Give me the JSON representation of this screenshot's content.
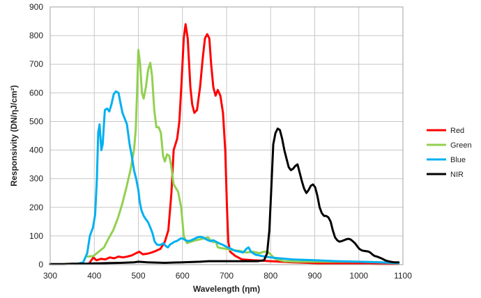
{
  "chart_data": {
    "type": "line",
    "xlabel": "Wavelength (ηm)",
    "ylabel": "Responsivity (DN/ηJ/cm²)",
    "xlim": [
      300,
      1100
    ],
    "ylim": [
      0,
      900
    ],
    "xticks": [
      300,
      400,
      500,
      600,
      700,
      800,
      900,
      1000,
      1100
    ],
    "yticks": [
      0,
      100,
      200,
      300,
      400,
      500,
      600,
      700,
      800,
      900
    ],
    "grid": true,
    "legend_position": "right",
    "series": [
      {
        "name": "Red",
        "color": "#ff0000",
        "points": [
          [
            390,
            8
          ],
          [
            398,
            25
          ],
          [
            405,
            15
          ],
          [
            415,
            20
          ],
          [
            425,
            18
          ],
          [
            435,
            25
          ],
          [
            445,
            22
          ],
          [
            455,
            28
          ],
          [
            465,
            25
          ],
          [
            475,
            28
          ],
          [
            485,
            32
          ],
          [
            495,
            40
          ],
          [
            502,
            45
          ],
          [
            510,
            36
          ],
          [
            520,
            38
          ],
          [
            530,
            42
          ],
          [
            540,
            48
          ],
          [
            550,
            55
          ],
          [
            560,
            80
          ],
          [
            568,
            120
          ],
          [
            575,
            250
          ],
          [
            580,
            400
          ],
          [
            588,
            440
          ],
          [
            593,
            500
          ],
          [
            598,
            640
          ],
          [
            603,
            790
          ],
          [
            607,
            840
          ],
          [
            612,
            790
          ],
          [
            618,
            620
          ],
          [
            622,
            560
          ],
          [
            627,
            530
          ],
          [
            633,
            540
          ],
          [
            640,
            620
          ],
          [
            646,
            720
          ],
          [
            651,
            790
          ],
          [
            656,
            805
          ],
          [
            661,
            790
          ],
          [
            665,
            700
          ],
          [
            670,
            620
          ],
          [
            675,
            590
          ],
          [
            680,
            610
          ],
          [
            686,
            590
          ],
          [
            692,
            530
          ],
          [
            697,
            400
          ],
          [
            701,
            200
          ],
          [
            704,
            80
          ],
          [
            708,
            45
          ],
          [
            720,
            30
          ],
          [
            735,
            18
          ],
          [
            760,
            15
          ],
          [
            800,
            12
          ],
          [
            850,
            8
          ],
          [
            900,
            5
          ],
          [
            950,
            4
          ],
          [
            1000,
            3
          ],
          [
            1050,
            2
          ],
          [
            1090,
            2
          ]
        ]
      },
      {
        "name": "Green",
        "color": "#92d050",
        "points": [
          [
            385,
            28
          ],
          [
            398,
            30
          ],
          [
            410,
            45
          ],
          [
            422,
            60
          ],
          [
            432,
            90
          ],
          [
            443,
            120
          ],
          [
            453,
            160
          ],
          [
            463,
            210
          ],
          [
            473,
            270
          ],
          [
            482,
            330
          ],
          [
            490,
            400
          ],
          [
            494,
            470
          ],
          [
            497,
            600
          ],
          [
            500,
            750
          ],
          [
            504,
            700
          ],
          [
            508,
            600
          ],
          [
            512,
            580
          ],
          [
            517,
            620
          ],
          [
            522,
            680
          ],
          [
            527,
            705
          ],
          [
            531,
            660
          ],
          [
            536,
            540
          ],
          [
            541,
            480
          ],
          [
            546,
            480
          ],
          [
            551,
            460
          ],
          [
            556,
            380
          ],
          [
            560,
            360
          ],
          [
            565,
            385
          ],
          [
            570,
            380
          ],
          [
            574,
            350
          ],
          [
            580,
            280
          ],
          [
            590,
            255
          ],
          [
            597,
            200
          ],
          [
            603,
            100
          ],
          [
            610,
            75
          ],
          [
            620,
            80
          ],
          [
            630,
            85
          ],
          [
            640,
            88
          ],
          [
            650,
            92
          ],
          [
            658,
            95
          ],
          [
            664,
            85
          ],
          [
            670,
            78
          ],
          [
            676,
            80
          ],
          [
            680,
            60
          ],
          [
            690,
            57
          ],
          [
            700,
            55
          ],
          [
            715,
            50
          ],
          [
            730,
            48
          ],
          [
            745,
            42
          ],
          [
            760,
            45
          ],
          [
            775,
            40
          ],
          [
            785,
            45
          ],
          [
            793,
            45
          ],
          [
            800,
            35
          ],
          [
            810,
            20
          ],
          [
            830,
            12
          ],
          [
            860,
            10
          ],
          [
            900,
            10
          ],
          [
            950,
            10
          ],
          [
            1000,
            10
          ],
          [
            1050,
            8
          ],
          [
            1090,
            5
          ]
        ]
      },
      {
        "name": "Blue",
        "color": "#00b0f0",
        "points": [
          [
            360,
            2
          ],
          [
            375,
            8
          ],
          [
            384,
            40
          ],
          [
            390,
            100
          ],
          [
            397,
            130
          ],
          [
            402,
            175
          ],
          [
            406,
            300
          ],
          [
            409,
            460
          ],
          [
            412,
            490
          ],
          [
            416,
            400
          ],
          [
            419,
            420
          ],
          [
            424,
            540
          ],
          [
            429,
            545
          ],
          [
            434,
            535
          ],
          [
            439,
            560
          ],
          [
            444,
            595
          ],
          [
            449,
            605
          ],
          [
            455,
            600
          ],
          [
            460,
            560
          ],
          [
            464,
            530
          ],
          [
            469,
            510
          ],
          [
            474,
            490
          ],
          [
            480,
            420
          ],
          [
            485,
            380
          ],
          [
            490,
            330
          ],
          [
            495,
            300
          ],
          [
            500,
            260
          ],
          [
            503,
            220
          ],
          [
            507,
            190
          ],
          [
            512,
            170
          ],
          [
            517,
            158
          ],
          [
            522,
            148
          ],
          [
            527,
            130
          ],
          [
            532,
            110
          ],
          [
            537,
            80
          ],
          [
            542,
            70
          ],
          [
            547,
            68
          ],
          [
            552,
            70
          ],
          [
            557,
            75
          ],
          [
            562,
            65
          ],
          [
            567,
            60
          ],
          [
            572,
            70
          ],
          [
            577,
            75
          ],
          [
            582,
            80
          ],
          [
            587,
            82
          ],
          [
            592,
            87
          ],
          [
            597,
            92
          ],
          [
            602,
            90
          ],
          [
            607,
            85
          ],
          [
            613,
            82
          ],
          [
            620,
            85
          ],
          [
            627,
            90
          ],
          [
            634,
            95
          ],
          [
            640,
            97
          ],
          [
            646,
            95
          ],
          [
            652,
            90
          ],
          [
            658,
            85
          ],
          [
            664,
            82
          ],
          [
            670,
            85
          ],
          [
            676,
            80
          ],
          [
            682,
            75
          ],
          [
            690,
            70
          ],
          [
            700,
            62
          ],
          [
            710,
            55
          ],
          [
            720,
            48
          ],
          [
            730,
            45
          ],
          [
            738,
            42
          ],
          [
            745,
            55
          ],
          [
            750,
            60
          ],
          [
            755,
            45
          ],
          [
            765,
            35
          ],
          [
            780,
            30
          ],
          [
            800,
            25
          ],
          [
            820,
            22
          ],
          [
            850,
            18
          ],
          [
            900,
            15
          ],
          [
            950,
            12
          ],
          [
            1000,
            10
          ],
          [
            1050,
            8
          ],
          [
            1090,
            5
          ]
        ]
      },
      {
        "name": "NIR",
        "color": "#000000",
        "points": [
          [
            300,
            2
          ],
          [
            330,
            2
          ],
          [
            350,
            3
          ],
          [
            380,
            3
          ],
          [
            400,
            4
          ],
          [
            430,
            5
          ],
          [
            460,
            6
          ],
          [
            490,
            8
          ],
          [
            500,
            10
          ],
          [
            520,
            8
          ],
          [
            560,
            6
          ],
          [
            600,
            8
          ],
          [
            640,
            10
          ],
          [
            660,
            12
          ],
          [
            700,
            12
          ],
          [
            740,
            12
          ],
          [
            770,
            12
          ],
          [
            785,
            15
          ],
          [
            792,
            40
          ],
          [
            797,
            120
          ],
          [
            801,
            250
          ],
          [
            806,
            420
          ],
          [
            811,
            460
          ],
          [
            816,
            475
          ],
          [
            821,
            470
          ],
          [
            826,
            440
          ],
          [
            831,
            400
          ],
          [
            836,
            370
          ],
          [
            841,
            340
          ],
          [
            846,
            330
          ],
          [
            851,
            335
          ],
          [
            856,
            345
          ],
          [
            861,
            350
          ],
          [
            866,
            320
          ],
          [
            871,
            290
          ],
          [
            876,
            265
          ],
          [
            881,
            250
          ],
          [
            886,
            260
          ],
          [
            891,
            275
          ],
          [
            896,
            280
          ],
          [
            901,
            270
          ],
          [
            906,
            240
          ],
          [
            911,
            200
          ],
          [
            916,
            180
          ],
          [
            921,
            170
          ],
          [
            926,
            170
          ],
          [
            931,
            165
          ],
          [
            936,
            150
          ],
          [
            941,
            120
          ],
          [
            946,
            95
          ],
          [
            951,
            85
          ],
          [
            956,
            80
          ],
          [
            961,
            82
          ],
          [
            966,
            85
          ],
          [
            971,
            88
          ],
          [
            976,
            90
          ],
          [
            981,
            88
          ],
          [
            986,
            82
          ],
          [
            991,
            75
          ],
          [
            996,
            65
          ],
          [
            1001,
            55
          ],
          [
            1006,
            50
          ],
          [
            1011,
            48
          ],
          [
            1016,
            47
          ],
          [
            1021,
            46
          ],
          [
            1026,
            42
          ],
          [
            1031,
            35
          ],
          [
            1036,
            30
          ],
          [
            1041,
            28
          ],
          [
            1046,
            25
          ],
          [
            1051,
            22
          ],
          [
            1056,
            18
          ],
          [
            1061,
            14
          ],
          [
            1066,
            12
          ],
          [
            1071,
            10
          ],
          [
            1080,
            8
          ],
          [
            1090,
            8
          ]
        ]
      }
    ]
  }
}
